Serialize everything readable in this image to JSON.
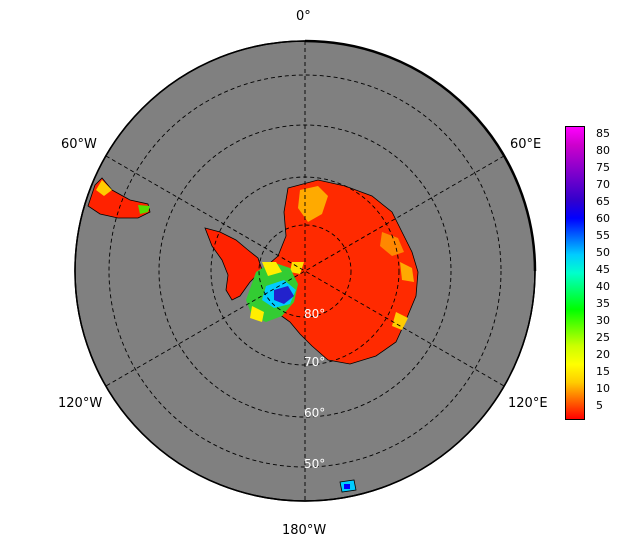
{
  "map": {
    "projection": "south-polar-stereographic",
    "background_color": "#808080",
    "border_color": "#000000",
    "grid_style": "dashed",
    "lon_labels": {
      "top": "0°",
      "upper_left": "60°W",
      "upper_right": "60°E",
      "lower_left": "120°W",
      "lower_right": "120°E",
      "bottom": "180°W"
    },
    "lat_labels": [
      "80°",
      "70°",
      "60°",
      "50°"
    ]
  },
  "colorbar": {
    "ticks": [
      "85",
      "80",
      "75",
      "70",
      "65",
      "60",
      "55",
      "50",
      "45",
      "40",
      "35",
      "30",
      "25",
      "20",
      "15",
      "10",
      "5"
    ],
    "colors": [
      "#ff0000",
      "#ff6600",
      "#ffcc00",
      "#ffff00",
      "#ccff00",
      "#66ff00",
      "#00ff00",
      "#00ff66",
      "#00ffcc",
      "#00ccff",
      "#0066ff",
      "#0000ff",
      "#3300cc",
      "#6600cc",
      "#9900cc",
      "#cc00cc",
      "#ff00ff"
    ]
  }
}
